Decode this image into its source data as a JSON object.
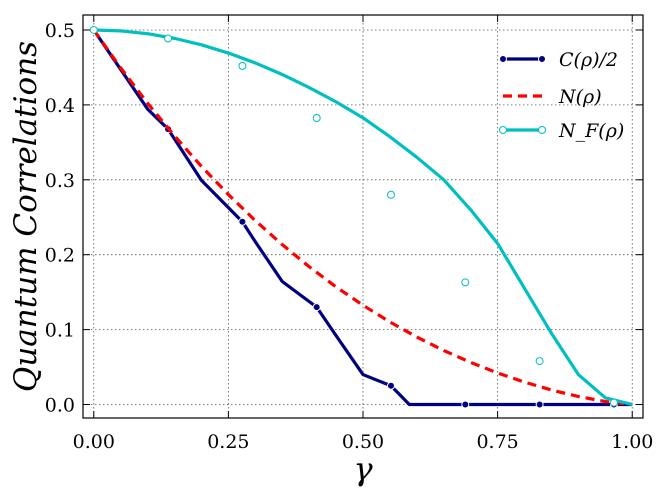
{
  "chart_data": {
    "type": "line",
    "xlabel": "γ",
    "ylabel": "Quantum Correlations",
    "xlim": [
      -0.02,
      1.02
    ],
    "ylim": [
      -0.018,
      0.52
    ],
    "xticks": [
      0.0,
      0.25,
      0.5,
      0.75,
      1.0
    ],
    "xtick_labels": [
      "0.00",
      "0.25",
      "0.50",
      "0.75",
      "1.00"
    ],
    "yticks": [
      0.0,
      0.1,
      0.2,
      0.3,
      0.4,
      0.5
    ],
    "ytick_labels": [
      "0.0",
      "0.1",
      "0.2",
      "0.3",
      "0.4",
      "0.5"
    ],
    "grid": true,
    "legend_position": "top-right",
    "series": [
      {
        "name": "C(ρ)/2",
        "color": "#000080",
        "style": "solid-dots",
        "x": [
          0.0,
          0.05,
          0.1,
          0.138,
          0.2,
          0.276,
          0.3,
          0.35,
          0.414,
          0.45,
          0.5,
          0.552,
          0.586,
          0.69,
          0.828,
          0.966,
          1.0
        ],
        "y": [
          0.5,
          0.4473,
          0.3944,
          0.3676,
          0.2993,
          0.244,
          0.2173,
          0.1642,
          0.13,
          0.092,
          0.04,
          0.025,
          0.0,
          0.0,
          0.0,
          0.0,
          0.0
        ],
        "marker_x": [
          0.0,
          0.138,
          0.276,
          0.414,
          0.552,
          0.69,
          0.828,
          0.966
        ]
      },
      {
        "name": "N(ρ)",
        "color": "#ff0000",
        "style": "dashed",
        "x": [
          0.0,
          0.05,
          0.1,
          0.15,
          0.2,
          0.25,
          0.3,
          0.35,
          0.4,
          0.45,
          0.5,
          0.55,
          0.6,
          0.65,
          0.7,
          0.75,
          0.8,
          0.85,
          0.9,
          0.95,
          1.0
        ],
        "y": [
          0.5,
          0.4494,
          0.4022,
          0.3585,
          0.3179,
          0.2803,
          0.2455,
          0.2135,
          0.184,
          0.157,
          0.1325,
          0.1102,
          0.0901,
          0.0721,
          0.0562,
          0.0421,
          0.0299,
          0.0194,
          0.0107,
          0.004,
          0.0
        ]
      },
      {
        "name": "N_F(ρ)",
        "color": "#00bfbf",
        "style": "solid-hollow-dots",
        "x": [
          0.0,
          0.05,
          0.1,
          0.15,
          0.2,
          0.25,
          0.3,
          0.35,
          0.4,
          0.45,
          0.5,
          0.55,
          0.6,
          0.65,
          0.7,
          0.75,
          0.8,
          0.85,
          0.9,
          0.95,
          1.0
        ],
        "y": [
          0.5,
          0.4988,
          0.495,
          0.4888,
          0.4802,
          0.4692,
          0.456,
          0.4406,
          0.4231,
          0.404,
          0.3827,
          0.3575,
          0.33,
          0.3,
          0.26,
          0.215,
          0.155,
          0.095,
          0.04,
          0.009,
          0.0
        ],
        "marker_x": [
          0.0,
          0.138,
          0.276,
          0.414,
          0.552,
          0.69,
          0.828,
          0.966
        ],
        "marker_y": [
          0.5,
          0.4886,
          0.4521,
          0.3825,
          0.28,
          0.163,
          0.058,
          0.0025
        ]
      }
    ]
  }
}
